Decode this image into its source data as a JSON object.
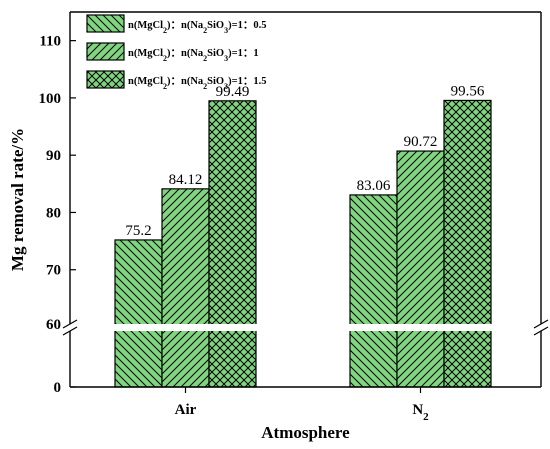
{
  "chart_data": {
    "type": "bar",
    "xlabel": "Atmosphere",
    "ylabel": "Mg removal rate/%",
    "categories": [
      {
        "main": "Air",
        "sub": ""
      },
      {
        "main": "N",
        "sub": "2"
      }
    ],
    "series": [
      {
        "name": "n(MgCl2)：n(Na2SiO3)=1：0.5",
        "pattern": "diag-down",
        "values": [
          75.2,
          83.06
        ],
        "labels": [
          "75.2",
          "83.06"
        ]
      },
      {
        "name": "n(MgCl2)：n(Na2SiO3)=1：1",
        "pattern": "diag-up",
        "values": [
          84.12,
          90.72
        ],
        "labels": [
          "84.12",
          "90.72"
        ]
      },
      {
        "name": "n(MgCl2)：n(Na2SiO3)=1：1.5",
        "pattern": "cross",
        "values": [
          99.49,
          99.56
        ],
        "labels": [
          "99.49",
          "99.56"
        ]
      }
    ],
    "legend": [
      {
        "pre": "n(MgCl",
        "s1": "2",
        "mid": ")：n(Na",
        "s2": "2",
        "mid2": "SiO",
        "s3": "3",
        "post": ")=1：0.5"
      },
      {
        "pre": "n(MgCl",
        "s1": "2",
        "mid": ")：n(Na",
        "s2": "2",
        "mid2": "SiO",
        "s3": "3",
        "post": ")=1：1"
      },
      {
        "pre": "n(MgCl",
        "s1": "2",
        "mid": ")：n(Na",
        "s2": "2",
        "mid2": "SiO",
        "s3": "3",
        "post": ")=1：1.5"
      }
    ],
    "legend_position": "top-left",
    "y_axis_break": {
      "lower_range": [
        0,
        60
      ],
      "upper_range": [
        60,
        115
      ]
    },
    "y_ticks": [
      0,
      60,
      70,
      80,
      90,
      100,
      110
    ],
    "bar_color": "#7fd67f",
    "grid": false
  }
}
